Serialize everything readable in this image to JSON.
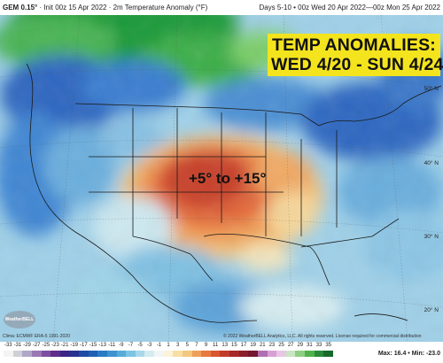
{
  "header": {
    "model": "GEM 0.15°",
    "init": "Init 00z 15 Apr 2022",
    "field": "2m Temperature Anomaly (°F)",
    "valid": "Days 5-10 • 00z Wed 20 Apr 2022—00z Mon 25 Apr 2022"
  },
  "callout": {
    "line1": "TEMP ANOMALIES:",
    "line2": "WED 4/20 - SUN 4/24"
  },
  "annotation": "+5° to +15°",
  "lat_labels": [
    "50° N",
    "40° N",
    "30° N",
    "20° N"
  ],
  "footer": {
    "left": "Clima: ECMWF ERA-5 1991-2020",
    "right": "© 2022 WeatherBELL Analytics, LLC. All rights reserved. License required for commercial distribution",
    "logo": "WeatherBELL",
    "max": "Max: 16.4",
    "min": "Min: -23.0"
  },
  "colorbar": {
    "labels": [
      "-33",
      "-31",
      "-29",
      "-27",
      "-25",
      "-23",
      "-21",
      "-19",
      "-17",
      "-15",
      "-13",
      "-11",
      "-9",
      "-7",
      "-5",
      "-3",
      "-1",
      "1",
      "3",
      "5",
      "7",
      "9",
      "11",
      "13",
      "15",
      "17",
      "19",
      "21",
      "23",
      "25",
      "27",
      "29",
      "31",
      "33",
      "35"
    ],
    "colors": [
      "#f4f4f4",
      "#cfcfd6",
      "#b0a6c8",
      "#9978b4",
      "#7d4fa0",
      "#5f2d8a",
      "#3b2485",
      "#27348f",
      "#1e4ba3",
      "#1f5fb4",
      "#2b7ac4",
      "#3e92d0",
      "#57abd9",
      "#7cc4e2",
      "#a8d8ea",
      "#d3ecf1",
      "#f2f5f6",
      "#fbf2d8",
      "#f7dfa6",
      "#f3c77c",
      "#ef9f58",
      "#e77a3e",
      "#d9562f",
      "#c23b2a",
      "#a62a2a",
      "#8b1f2c",
      "#74182f",
      "#b06fb2",
      "#d7a0d5",
      "#e8c6e6",
      "#c9e6c2",
      "#8fcf83",
      "#51b24c",
      "#2a8a39",
      "#176a2c"
    ]
  }
}
